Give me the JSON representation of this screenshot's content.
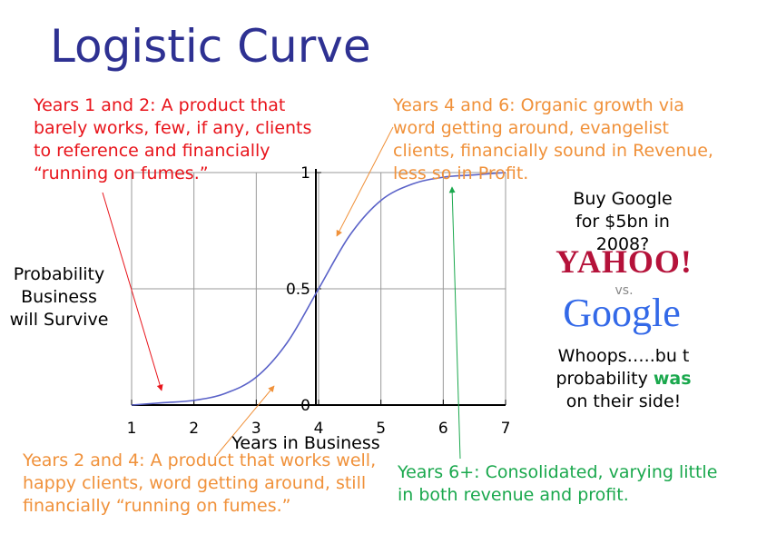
{
  "chart_data": {
    "type": "line",
    "title": "Logistic Curve",
    "x_label": "Years in Business",
    "y_label": "Probability Business will Survive",
    "x": [
      1,
      1.5,
      2,
      2.5,
      3,
      3.5,
      4,
      4.5,
      5,
      5.5,
      6,
      6.5,
      7
    ],
    "series": [
      {
        "color": "#5a62c8",
        "values": [
          0,
          0.01,
          0.02,
          0.05,
          0.12,
          0.27,
          0.5,
          0.73,
          0.88,
          0.95,
          0.98,
          0.99,
          1
        ]
      }
    ],
    "xlim": [
      1,
      7
    ],
    "xticks": [
      1,
      2,
      3,
      4,
      5,
      6,
      7
    ],
    "ylim": [
      0,
      1
    ],
    "yticks": [
      0,
      0.5,
      1
    ],
    "grid": true,
    "annotations": [
      "Years 1 and 2:  A product that barely works,  few, if any, clients to reference and financially “running on fumes.”",
      "Years 4 and 6:  Organic growth via word getting around,  evangelist clients,  financially sound in Revenue, less so in Profit.",
      "Years 2 and 4:  A product that works well,  happy clients,  word getting around,  still financially “running on fumes.”",
      "Years 6+:  Consolidated,  varying little in both revenue and profit.",
      "Buy Google for $5bn in 2008?",
      "YAHOO!",
      "vs.",
      "Google",
      "Whoops…..bu t probability",
      "was",
      "on their side!"
    ]
  }
}
